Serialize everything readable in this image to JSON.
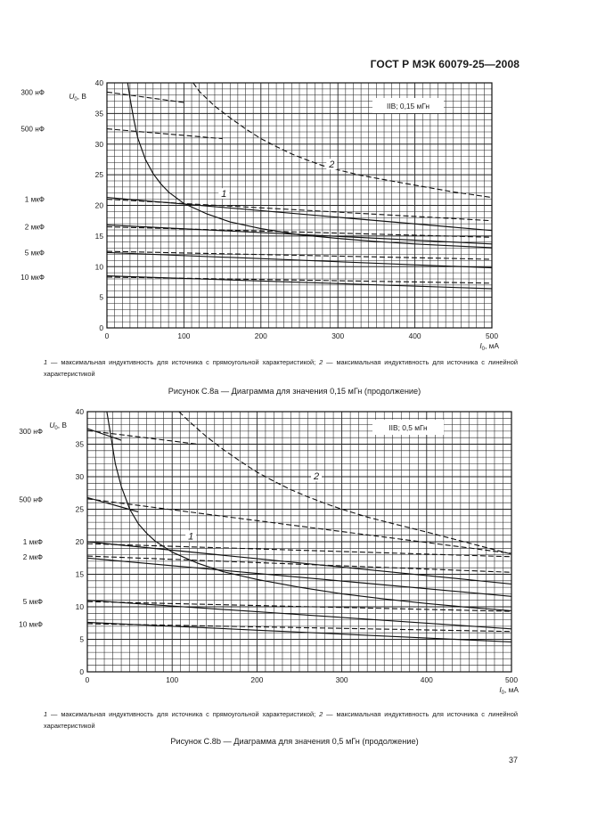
{
  "header": {
    "title": "ГОСТ Р МЭК 60079-25—2008"
  },
  "page_number": "37",
  "chart_data": [
    {
      "type": "line",
      "id": "a",
      "legend_box": "IIB; 0,15 мГн",
      "ylabel_main": "U",
      "ylabel_sub": "0",
      "ylabel_unit": ", B",
      "xlabel_main": "I",
      "xlabel_sub": "0",
      "xlabel_unit": ", мА",
      "xlim": [
        0,
        500
      ],
      "ylim": [
        0,
        40
      ],
      "x_ticks": [
        0,
        100,
        200,
        300,
        400,
        500
      ],
      "x_tick_labels": [
        "0",
        "100",
        "200",
        "300",
        "400",
        "500"
      ],
      "y_ticks": [
        0,
        5,
        10,
        15,
        20,
        25,
        30,
        35,
        40
      ],
      "y_tick_labels": [
        "0",
        "5",
        "10",
        "15",
        "20",
        "25",
        "30",
        "35",
        "40"
      ],
      "capacitance_labels": [
        {
          "text": "300 нФ",
          "y": 38.5
        },
        {
          "text": "500 нФ",
          "y": 32.5
        },
        {
          "text": "1 мкФ",
          "y": 21.0
        },
        {
          "text": "2 мкФ",
          "y": 16.5
        },
        {
          "text": "5 мкФ",
          "y": 12.3
        },
        {
          "text": "10 мкФ",
          "y": 8.3
        }
      ],
      "curve_labels": [
        {
          "text": "1",
          "x": 152,
          "y": 21.5
        },
        {
          "text": "2",
          "x": 292,
          "y": 26.3
        }
      ],
      "series": [
        {
          "name": "1",
          "style": "solid",
          "x": [
            27,
            30,
            35,
            40,
            50,
            60,
            70,
            80,
            100,
            130,
            160,
            200,
            250,
            300,
            350,
            400,
            450,
            500
          ],
          "y": [
            40,
            37.5,
            34,
            31,
            27.5,
            25.2,
            23.5,
            22.2,
            20.3,
            18.6,
            17.3,
            16.2,
            15.2,
            14.6,
            14.1,
            13.7,
            13.4,
            13.1
          ]
        },
        {
          "name": "2",
          "style": "dashed",
          "x": [
            112,
            120,
            140,
            160,
            180,
            200,
            220,
            240,
            260,
            280,
            300,
            330,
            360,
            400,
            450,
            500
          ],
          "y": [
            40,
            38.6,
            36.2,
            34.3,
            32.5,
            30.9,
            29.6,
            28.4,
            27.4,
            26.5,
            25.8,
            24.9,
            24.2,
            23.3,
            22.2,
            21.3
          ]
        },
        {
          "name": "300 нФ",
          "style": "dashed",
          "x": [
            0,
            100
          ],
          "y": [
            38.5,
            36.8
          ]
        },
        {
          "name": "500 нФ",
          "style": "dashed",
          "x": [
            0,
            150
          ],
          "y": [
            32.5,
            30.9
          ]
        },
        {
          "name": "1 мкФ a",
          "style": "solid",
          "x": [
            0,
            500
          ],
          "y": [
            21.3,
            15.9
          ]
        },
        {
          "name": "1 мкФ b",
          "style": "dashed",
          "x": [
            0,
            500
          ],
          "y": [
            21.0,
            17.5
          ]
        },
        {
          "name": "2 мкФ a",
          "style": "solid",
          "x": [
            0,
            500
          ],
          "y": [
            16.8,
            13.7
          ]
        },
        {
          "name": "2 мкФ b",
          "style": "dashed",
          "x": [
            0,
            500
          ],
          "y": [
            16.5,
            14.8
          ]
        },
        {
          "name": "5 мкФ a",
          "style": "solid",
          "x": [
            0,
            500
          ],
          "y": [
            12.3,
            9.8
          ]
        },
        {
          "name": "5 мкФ b",
          "style": "dashed",
          "x": [
            0,
            500
          ],
          "y": [
            12.5,
            11.2
          ]
        },
        {
          "name": "10 мкФ a",
          "style": "solid",
          "x": [
            0,
            500
          ],
          "y": [
            8.5,
            6.4
          ]
        },
        {
          "name": "10 мкФ b",
          "style": "dashed",
          "x": [
            0,
            500
          ],
          "y": [
            8.3,
            7.3
          ]
        }
      ]
    },
    {
      "type": "line",
      "id": "b",
      "legend_box": "IIB; 0,5 мГн",
      "ylabel_main": "U",
      "ylabel_sub": "0",
      "ylabel_unit": ", B",
      "xlabel_main": "I",
      "xlabel_sub": "0",
      "xlabel_unit": ", мА",
      "xlim": [
        0,
        500
      ],
      "ylim": [
        0,
        40
      ],
      "x_ticks": [
        0,
        100,
        200,
        300,
        400,
        500
      ],
      "x_tick_labels": [
        "0",
        "100",
        "200",
        "300",
        "400",
        "500"
      ],
      "y_ticks": [
        0,
        5,
        10,
        15,
        20,
        25,
        30,
        35,
        40
      ],
      "y_tick_labels": [
        "0",
        "5",
        "10",
        "15",
        "20",
        "25",
        "30",
        "35",
        "40"
      ],
      "capacitance_labels": [
        {
          "text": "300 нФ",
          "y": 37.0
        },
        {
          "text": "500 нФ",
          "y": 26.5
        },
        {
          "text": "1 мкФ",
          "y": 20.0
        },
        {
          "text": "2 мкФ",
          "y": 17.7
        },
        {
          "text": "5 мкФ",
          "y": 10.8
        },
        {
          "text": "10 мкФ",
          "y": 7.3
        }
      ],
      "curve_labels": [
        {
          "text": "1",
          "x": 122,
          "y": 20.5
        },
        {
          "text": "2",
          "x": 270,
          "y": 29.7
        }
      ],
      "series": [
        {
          "name": "1",
          "style": "solid",
          "x": [
            23,
            28,
            33,
            40,
            50,
            60,
            70,
            80,
            100,
            130,
            160,
            200,
            250,
            300,
            350,
            400,
            450,
            500
          ],
          "y": [
            40,
            36,
            32,
            28.5,
            25,
            22.8,
            21.3,
            20.1,
            18.4,
            16.7,
            15.4,
            14.2,
            13.0,
            12.0,
            11.2,
            10.5,
            9.9,
            9.4
          ]
        },
        {
          "name": "2",
          "style": "dashed",
          "x": [
            108,
            120,
            140,
            160,
            180,
            200,
            220,
            240,
            260,
            280,
            300,
            330,
            360,
            400,
            450,
            500
          ],
          "y": [
            40,
            38.5,
            36.2,
            34.2,
            32.4,
            30.7,
            29.3,
            28.0,
            26.9,
            25.9,
            25.0,
            23.8,
            22.8,
            21.5,
            19.8,
            18.1
          ]
        },
        {
          "name": "300 нФ a",
          "style": "solid",
          "x": [
            0,
            40
          ],
          "y": [
            37.4,
            35.6
          ]
        },
        {
          "name": "300 нФ b",
          "style": "dashed",
          "x": [
            0,
            130
          ],
          "y": [
            37.1,
            35.0
          ]
        },
        {
          "name": "500 нФ a",
          "style": "solid",
          "x": [
            0,
            60
          ],
          "y": [
            26.8,
            24.6
          ]
        },
        {
          "name": "500 нФ b",
          "style": "dashed",
          "x": [
            0,
            500
          ],
          "y": [
            26.6,
            18.2
          ]
        },
        {
          "name": "1 мкФ a",
          "style": "solid",
          "x": [
            0,
            500
          ],
          "y": [
            20.0,
            13.5
          ]
        },
        {
          "name": "1 мкФ b",
          "style": "dashed",
          "x": [
            0,
            500
          ],
          "y": [
            19.7,
            17.7
          ]
        },
        {
          "name": "2 мкФ a",
          "style": "solid",
          "x": [
            0,
            500
          ],
          "y": [
            17.5,
            11.6
          ]
        },
        {
          "name": "2 мкФ b",
          "style": "dashed",
          "x": [
            0,
            500
          ],
          "y": [
            17.8,
            15.3
          ]
        },
        {
          "name": "5 мкФ a",
          "style": "solid",
          "x": [
            0,
            500
          ],
          "y": [
            11.0,
            6.6
          ]
        },
        {
          "name": "5 мкФ b",
          "style": "dashed",
          "x": [
            0,
            500
          ],
          "y": [
            10.8,
            9.3
          ]
        },
        {
          "name": "10 мкФ a",
          "style": "solid",
          "x": [
            0,
            500
          ],
          "y": [
            7.6,
            4.6
          ]
        },
        {
          "name": "10 мкФ b",
          "style": "dashed",
          "x": [
            0,
            500
          ],
          "y": [
            7.4,
            6.2
          ]
        }
      ]
    }
  ],
  "captions": [
    {
      "note_num1": "1",
      "note_text1": " — максимальная индуктивность для источника с прямоугольной характеристикой; ",
      "note_num2": "2",
      "note_text2": " — максимальная индуктивность для источника с линейной характеристикой",
      "figure_title": "Рисунок С.8а — Диаграмма для значения 0,15 мГн (продолжение)"
    },
    {
      "note_num1": "1",
      "note_text1": " — максимальная индуктивность для источника с прямоугольной характеристикой; ",
      "note_num2": "2",
      "note_text2": " — максимальная индуктивность для источника с линейной характеристикой",
      "figure_title": "Рисунок С.8b — Диаграмма для значения 0,5 мГн (продолжение)"
    }
  ]
}
